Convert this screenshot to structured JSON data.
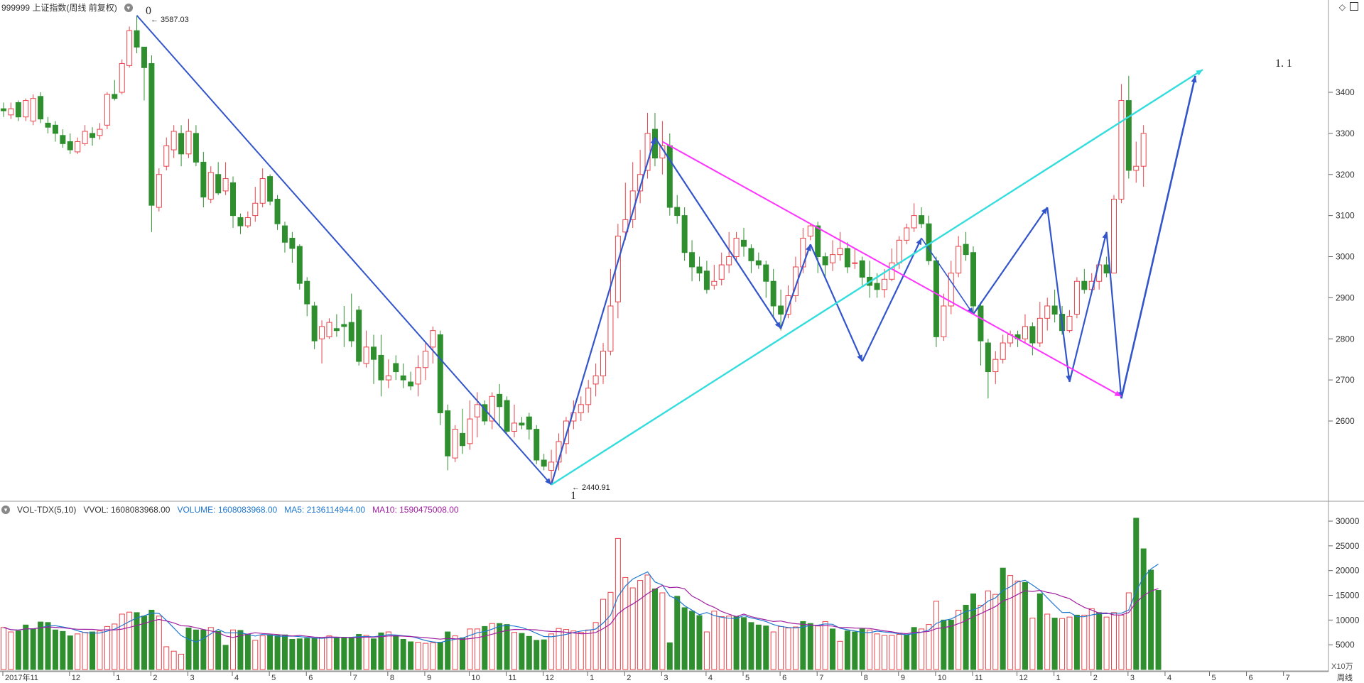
{
  "header": {
    "title": "999999 上证指数(周线 前复权)"
  },
  "volume_header": {
    "indicator": "VOL-TDX(5,10)",
    "vvol": "VVOL: 1608083968.00",
    "volume": "VOLUME: 1608083968.00",
    "ma5": "MA5: 2136114944.00",
    "ma10": "MA10: 1590475008.00"
  },
  "colors": {
    "up": "#e8434a",
    "down": "#2f8f2f",
    "wave": "#3355cc",
    "magenta": "#ff33ff",
    "cyan": "#33dddd",
    "ma5": "#1f77d0",
    "ma10": "#a020a0"
  },
  "annotations": {
    "high_label": "3587.03",
    "low_label": "2440.91",
    "wave_0": "0",
    "wave_1": "1",
    "wave_11": "1. 1"
  },
  "bottom": {
    "period_label": "周线",
    "unit_label": "X10万"
  },
  "chart_data": [
    {
      "type": "candlestick",
      "title": "999999 上证指数(周线 前复权)",
      "y_ticks": [
        2600,
        2700,
        2800,
        2900,
        3000,
        3100,
        3200,
        3300,
        3400
      ],
      "x_tick_labels": [
        "2017年11",
        "12",
        "1",
        "2",
        "3",
        "4",
        "5",
        "6",
        "7",
        "8",
        "9",
        "10",
        "11",
        "12",
        "1",
        "2",
        "3",
        "4",
        "5",
        "6",
        "7",
        "8",
        "9",
        "10",
        "11",
        "12",
        "1",
        "2",
        "3",
        "4",
        "5",
        "6",
        "7"
      ],
      "high": 3587.03,
      "low": 2440.91,
      "candles": [
        [
          3360,
          3355,
          3375,
          3340
        ],
        [
          3345,
          3360,
          3375,
          3335
        ],
        [
          3375,
          3340,
          3380,
          3330
        ],
        [
          3340,
          3380,
          3385,
          3330
        ],
        [
          3330,
          3385,
          3395,
          3320
        ],
        [
          3390,
          3335,
          3400,
          3325
        ],
        [
          3325,
          3315,
          3340,
          3300
        ],
        [
          3320,
          3300,
          3330,
          3280
        ],
        [
          3295,
          3275,
          3310,
          3265
        ],
        [
          3280,
          3260,
          3300,
          3250
        ],
        [
          3255,
          3280,
          3290,
          3250
        ],
        [
          3275,
          3305,
          3320,
          3270
        ],
        [
          3300,
          3290,
          3315,
          3270
        ],
        [
          3295,
          3310,
          3325,
          3285
        ],
        [
          3320,
          3395,
          3400,
          3310
        ],
        [
          3395,
          3385,
          3430,
          3380
        ],
        [
          3400,
          3470,
          3480,
          3395
        ],
        [
          3465,
          3550,
          3560,
          3460
        ],
        [
          3550,
          3510,
          3587,
          3495
        ],
        [
          3510,
          3460,
          3480,
          3380
        ],
        [
          3470,
          3125,
          3490,
          3060
        ],
        [
          3120,
          3200,
          3215,
          3110
        ],
        [
          3220,
          3270,
          3290,
          3210
        ],
        [
          3260,
          3305,
          3320,
          3240
        ],
        [
          3300,
          3250,
          3320,
          3220
        ],
        [
          3250,
          3305,
          3335,
          3240
        ],
        [
          3300,
          3230,
          3320,
          3220
        ],
        [
          3230,
          3145,
          3255,
          3120
        ],
        [
          3140,
          3205,
          3220,
          3130
        ],
        [
          3200,
          3155,
          3230,
          3150
        ],
        [
          3160,
          3190,
          3230,
          3150
        ],
        [
          3180,
          3100,
          3195,
          3070
        ],
        [
          3095,
          3075,
          3105,
          3055
        ],
        [
          3075,
          3095,
          3110,
          3070
        ],
        [
          3100,
          3130,
          3170,
          3085
        ],
        [
          3130,
          3190,
          3215,
          3120
        ],
        [
          3195,
          3135,
          3200,
          3125
        ],
        [
          3140,
          3080,
          3150,
          3065
        ],
        [
          3075,
          3035,
          3085,
          3010
        ],
        [
          3045,
          3020,
          3060,
          2985
        ],
        [
          3025,
          2935,
          3030,
          2920
        ],
        [
          2940,
          2885,
          2950,
          2855
        ],
        [
          2880,
          2795,
          2890,
          2775
        ],
        [
          2800,
          2830,
          2845,
          2740
        ],
        [
          2805,
          2840,
          2850,
          2800
        ],
        [
          2825,
          2820,
          2860,
          2805
        ],
        [
          2835,
          2830,
          2880,
          2780
        ],
        [
          2840,
          2795,
          2910,
          2780
        ],
        [
          2870,
          2745,
          2880,
          2735
        ],
        [
          2740,
          2780,
          2820,
          2730
        ],
        [
          2780,
          2750,
          2810,
          2690
        ],
        [
          2760,
          2700,
          2810,
          2660
        ],
        [
          2700,
          2710,
          2750,
          2680
        ],
        [
          2740,
          2720,
          2760,
          2700
        ],
        [
          2710,
          2700,
          2740,
          2680
        ],
        [
          2695,
          2685,
          2720,
          2675
        ],
        [
          2690,
          2730,
          2760,
          2660
        ],
        [
          2730,
          2770,
          2790,
          2700
        ],
        [
          2780,
          2820,
          2830,
          2740
        ],
        [
          2810,
          2620,
          2820,
          2590
        ],
        [
          2625,
          2515,
          2640,
          2480
        ],
        [
          2510,
          2580,
          2590,
          2500
        ],
        [
          2570,
          2540,
          2630,
          2520
        ],
        [
          2545,
          2605,
          2650,
          2530
        ],
        [
          2610,
          2640,
          2670,
          2560
        ],
        [
          2640,
          2600,
          2650,
          2590
        ],
        [
          2600,
          2660,
          2670,
          2580
        ],
        [
          2665,
          2635,
          2690,
          2585
        ],
        [
          2650,
          2575,
          2660,
          2570
        ],
        [
          2575,
          2595,
          2640,
          2560
        ],
        [
          2595,
          2590,
          2610,
          2580
        ],
        [
          2610,
          2580,
          2620,
          2555
        ],
        [
          2580,
          2505,
          2590,
          2495
        ],
        [
          2505,
          2490,
          2520,
          2480
        ],
        [
          2480,
          2500,
          2530,
          2445
        ],
        [
          2500,
          2550,
          2570,
          2480
        ],
        [
          2545,
          2600,
          2610,
          2520
        ],
        [
          2600,
          2620,
          2650,
          2580
        ],
        [
          2620,
          2640,
          2660,
          2600
        ],
        [
          2640,
          2680,
          2700,
          2620
        ],
        [
          2690,
          2710,
          2740,
          2660
        ],
        [
          2710,
          2770,
          2790,
          2690
        ],
        [
          2770,
          2880,
          2970,
          2760
        ],
        [
          2890,
          3050,
          3080,
          2850
        ],
        [
          3060,
          3090,
          3180,
          3040
        ],
        [
          3090,
          3160,
          3230,
          3070
        ],
        [
          3160,
          3200,
          3260,
          3130
        ],
        [
          3210,
          3300,
          3350,
          3190
        ],
        [
          3310,
          3240,
          3350,
          3220
        ],
        [
          3240,
          3270,
          3330,
          3200
        ],
        [
          3270,
          3120,
          3300,
          3100
        ],
        [
          3120,
          3100,
          3150,
          3080
        ],
        [
          3100,
          3010,
          3120,
          2990
        ],
        [
          3010,
          2975,
          3040,
          2940
        ],
        [
          2975,
          2960,
          3000,
          2940
        ],
        [
          2965,
          2920,
          2990,
          2910
        ],
        [
          2930,
          2940,
          2980,
          2920
        ],
        [
          2945,
          2980,
          3010,
          2930
        ],
        [
          2980,
          3000,
          3060,
          2960
        ],
        [
          3000,
          3045,
          3060,
          2990
        ],
        [
          3040,
          3025,
          3070,
          3000
        ],
        [
          3020,
          2990,
          3030,
          2960
        ],
        [
          2990,
          2980,
          3010,
          2970
        ],
        [
          2980,
          2940,
          2990,
          2900
        ],
        [
          2940,
          2880,
          2970,
          2850
        ],
        [
          2880,
          2860,
          2920,
          2820
        ],
        [
          2860,
          2905,
          2930,
          2850
        ],
        [
          2905,
          2975,
          3000,
          2890
        ],
        [
          2975,
          3045,
          3070,
          2960
        ],
        [
          3050,
          3075,
          3080,
          3040
        ],
        [
          3075,
          3000,
          3085,
          2960
        ],
        [
          3000,
          2980,
          3010,
          2950
        ],
        [
          2985,
          3005,
          3040,
          2965
        ],
        [
          3005,
          3020,
          3060,
          2990
        ],
        [
          3020,
          2975,
          3035,
          2960
        ],
        [
          2985,
          2985,
          3020,
          2970
        ],
        [
          2990,
          2950,
          3000,
          2930
        ],
        [
          2950,
          2930,
          2990,
          2900
        ],
        [
          2935,
          2920,
          2960,
          2900
        ],
        [
          2920,
          2945,
          2970,
          2900
        ],
        [
          2945,
          2985,
          3020,
          2940
        ],
        [
          2985,
          3040,
          3050,
          2970
        ],
        [
          3040,
          3070,
          3080,
          3030
        ],
        [
          3070,
          3100,
          3130,
          3060
        ],
        [
          3100,
          3080,
          3120,
          3070
        ],
        [
          3080,
          2990,
          3100,
          2980
        ],
        [
          2990,
          2805,
          3000,
          2780
        ],
        [
          2805,
          2880,
          2910,
          2795
        ],
        [
          2880,
          2960,
          2990,
          2860
        ],
        [
          2960,
          3025,
          3050,
          2950
        ],
        [
          3030,
          3005,
          3060,
          2990
        ],
        [
          3010,
          2880,
          3025,
          2860
        ],
        [
          2880,
          2795,
          2890,
          2735
        ],
        [
          2790,
          2720,
          2800,
          2655
        ],
        [
          2720,
          2750,
          2770,
          2690
        ],
        [
          2750,
          2790,
          2810,
          2740
        ],
        [
          2790,
          2810,
          2820,
          2780
        ],
        [
          2810,
          2800,
          2820,
          2780
        ],
        [
          2800,
          2830,
          2860,
          2790
        ],
        [
          2830,
          2790,
          2840,
          2760
        ],
        [
          2790,
          2850,
          2890,
          2780
        ],
        [
          2850,
          2880,
          2900,
          2820
        ],
        [
          2880,
          2860,
          2920,
          2840
        ],
        [
          2860,
          2820,
          2880,
          2810
        ],
        [
          2820,
          2855,
          2870,
          2815
        ],
        [
          2860,
          2940,
          2950,
          2850
        ],
        [
          2940,
          2920,
          2970,
          2910
        ],
        [
          2920,
          2940,
          2960,
          2910
        ],
        [
          2940,
          2980,
          2990,
          2920
        ],
        [
          2980,
          2960,
          3000,
          2950
        ],
        [
          2960,
          3140,
          3150,
          2960
        ],
        [
          3140,
          3380,
          3420,
          3130
        ],
        [
          3380,
          3210,
          3440,
          3190
        ],
        [
          3210,
          3220,
          3280,
          3180
        ],
        [
          3220,
          3300,
          3320,
          3170
        ]
      ]
    },
    {
      "type": "bar",
      "title": "VOL-TDX(5,10)",
      "y_ticks": [
        5000,
        10000,
        15000,
        20000,
        25000,
        30000
      ],
      "x_tick_labels": [
        "2017年11",
        "12",
        "1",
        "2",
        "3",
        "4",
        "5",
        "6",
        "7",
        "8",
        "9",
        "10",
        "11",
        "12",
        "1",
        "2",
        "3",
        "4",
        "5",
        "6",
        "7",
        "8",
        "9",
        "10",
        "11",
        "12",
        "1",
        "2",
        "3",
        "4",
        "5",
        "6",
        "7"
      ],
      "unit": "X10万",
      "values": [
        8500,
        7600,
        7800,
        9000,
        8200,
        9600,
        9500,
        8000,
        7700,
        6800,
        7200,
        7500,
        7600,
        7800,
        8700,
        9200,
        11200,
        11600,
        11500,
        10800,
        12000,
        10800,
        4600,
        3700,
        3100,
        8400,
        8000,
        8000,
        8500,
        7700,
        4900,
        8000,
        7900,
        7100,
        5900,
        6800,
        7000,
        6900,
        7000,
        6100,
        6200,
        6300,
        6300,
        6500,
        6800,
        6400,
        6500,
        6400,
        7100,
        6900,
        6200,
        7400,
        7600,
        6800,
        6100,
        5600,
        5500,
        5300,
        5400,
        5500,
        7600,
        6800,
        6400,
        8200,
        8200,
        8700,
        9300,
        9300,
        9100,
        7500,
        7300,
        6700,
        5900,
        6000,
        7200,
        8300,
        8100,
        7800,
        7500,
        8000,
        9500,
        14200,
        15600,
        26500,
        18600,
        16500,
        18000,
        19100,
        16300,
        15500,
        5400,
        14800,
        12500,
        11800,
        10900,
        7600,
        11800,
        10700,
        10800,
        10700,
        10500,
        9500,
        9000,
        8800,
        7600,
        8700,
        8400,
        8600,
        9700,
        9300,
        8800,
        9700,
        8200,
        5700,
        7800,
        7600,
        8200,
        8000,
        7200,
        6900,
        6900,
        7100,
        7000,
        8500,
        8200,
        9100,
        13800,
        10000,
        10000,
        12000,
        13000,
        15300,
        13000,
        15900,
        15200,
        20500,
        19000,
        17900,
        17600,
        10400,
        15300,
        11200,
        10400,
        10300,
        10600,
        11000,
        11000,
        12300,
        11500,
        10600,
        11500,
        11000,
        15500,
        30600,
        24400,
        20100,
        16000
      ],
      "up": [
        true,
        true,
        false,
        false,
        false,
        false,
        false,
        false,
        false,
        false,
        true,
        true,
        false,
        true,
        true,
        true,
        true,
        true,
        false,
        false,
        false,
        true,
        true,
        true,
        true,
        false,
        false,
        false,
        true,
        false,
        false,
        true,
        false,
        false,
        true,
        true,
        false,
        false,
        false,
        false,
        false,
        false,
        false,
        true,
        true,
        false,
        false,
        false,
        false,
        true,
        false,
        false,
        true,
        false,
        false,
        false,
        true,
        true,
        true,
        false,
        false,
        true,
        false,
        true,
        true,
        false,
        true,
        false,
        false,
        true,
        false,
        false,
        false,
        false,
        true,
        true,
        true,
        true,
        true,
        true,
        true,
        true,
        true,
        true,
        true,
        true,
        true,
        true,
        false,
        true,
        false,
        false,
        false,
        false,
        false,
        true,
        true,
        true,
        true,
        false,
        false,
        false,
        false,
        false,
        true,
        true,
        true,
        true,
        false,
        false,
        true,
        true,
        false,
        true,
        false,
        false,
        false,
        true,
        true,
        true,
        true,
        true,
        false,
        false,
        true,
        true,
        true,
        false,
        false,
        true,
        false,
        false,
        true,
        true,
        true,
        false,
        true,
        true,
        false,
        true,
        false,
        true,
        false,
        true,
        true,
        false,
        true,
        true,
        false,
        true,
        true,
        true,
        true,
        false,
        false,
        false,
        false,
        false,
        true,
        true,
        false,
        true
      ]
    }
  ]
}
